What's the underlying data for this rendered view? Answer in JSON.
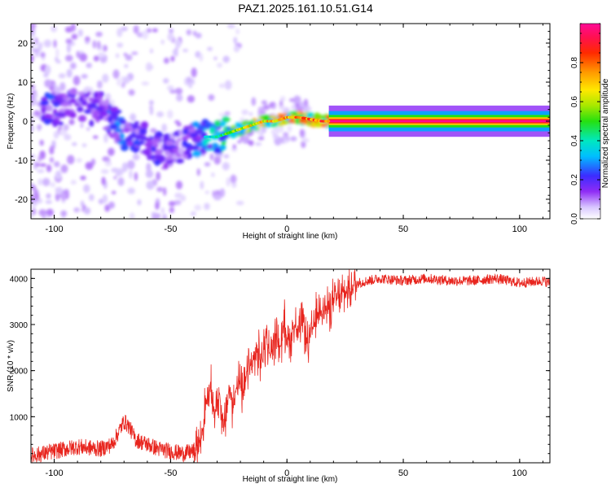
{
  "title": "PAZ1.2025.161.10.51.G14",
  "chart_data": [
    {
      "type": "heatmap",
      "title": "PAZ1.2025.161.10.51.G14",
      "xlabel": "Height of straight line (km)",
      "ylabel": "Frequency (Hz)",
      "xlim": [
        -110,
        113
      ],
      "ylim": [
        -25,
        25
      ],
      "xticks": [
        -100,
        -50,
        0,
        50,
        100
      ],
      "yticks": [
        -20,
        -10,
        0,
        10,
        20
      ],
      "colorbar": {
        "label": "Normalized spectral amplitude",
        "range": [
          0,
          1
        ],
        "ticks": [
          0.0,
          0.2,
          0.4,
          0.6,
          0.8
        ],
        "colormap": "rainbow: white, violet, blue, cyan, green, yellow, orange, red, magenta"
      },
      "ridge": {
        "description": "dominant frequency ridge",
        "x": [
          -100,
          -90,
          -80,
          -75,
          -70,
          -60,
          -55,
          -50,
          -45,
          -40,
          -35,
          -30,
          -25,
          -20,
          -15,
          -10,
          -5,
          0,
          5,
          10,
          15,
          20,
          50,
          113
        ],
        "y": [
          3,
          4,
          3,
          0,
          -3,
          -5,
          -7,
          -8,
          -6,
          -5,
          -4,
          -4,
          -3,
          -2,
          -1,
          0,
          0,
          1,
          1,
          0.5,
          0,
          0,
          0,
          0
        ],
        "amplitude": [
          0.25,
          0.2,
          0.2,
          0.3,
          0.3,
          0.2,
          0.25,
          0.2,
          0.2,
          0.3,
          0.4,
          0.45,
          0.6,
          0.7,
          0.75,
          0.8,
          0.8,
          0.85,
          0.85,
          0.9,
          0.95,
          1.0,
          1.0,
          1.0
        ]
      }
    },
    {
      "type": "line",
      "xlabel": "Height of straight line (km)",
      "ylabel": "SNR (10 * v/v)",
      "xlim": [
        -110,
        113
      ],
      "ylim": [
        0,
        4200
      ],
      "xticks": [
        -100,
        -50,
        0,
        50,
        100
      ],
      "yticks": [
        1000,
        2000,
        3000,
        4000
      ],
      "color": "#e8251e",
      "x": [
        -110,
        -100,
        -90,
        -80,
        -75,
        -72,
        -70,
        -68,
        -65,
        -60,
        -55,
        -50,
        -45,
        -40,
        -37,
        -35,
        -33,
        -31,
        -29,
        -27,
        -25,
        -23,
        -21,
        -19,
        -17,
        -15,
        -13,
        -11,
        -9,
        -7,
        -5,
        -3,
        -1,
        1,
        3,
        5,
        7,
        9,
        11,
        13,
        15,
        17,
        20,
        25,
        30,
        35,
        40,
        50,
        60,
        70,
        80,
        90,
        100,
        110,
        113
      ],
      "y": [
        150,
        250,
        350,
        300,
        400,
        700,
        900,
        800,
        500,
        400,
        300,
        250,
        200,
        250,
        500,
        1200,
        1600,
        1100,
        1500,
        700,
        1600,
        1200,
        1900,
        1400,
        2000,
        2100,
        2400,
        2200,
        2700,
        2300,
        2800,
        2500,
        3000,
        2600,
        3000,
        2800,
        3100,
        2500,
        2900,
        3200,
        3400,
        3300,
        3500,
        3700,
        3900,
        3950,
        4000,
        3950,
        4000,
        3950,
        3950,
        4000,
        3900,
        3950,
        3900
      ]
    }
  ]
}
